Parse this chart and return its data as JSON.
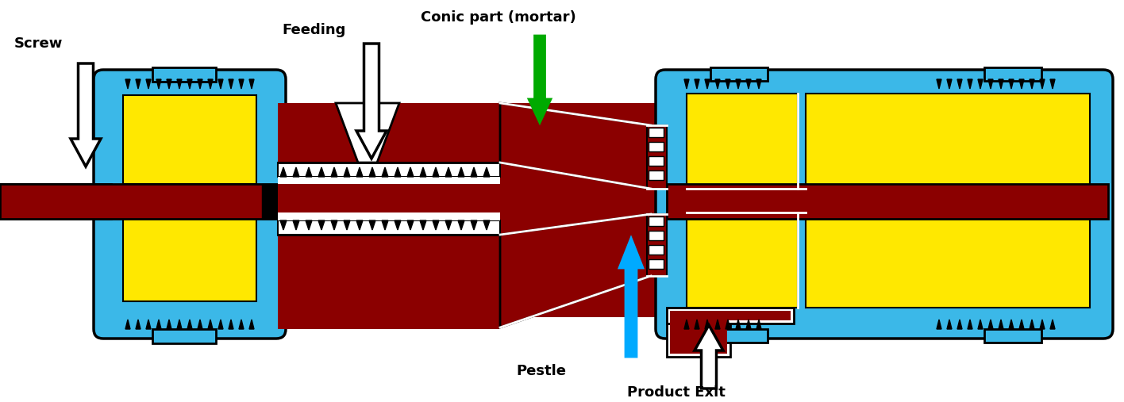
{
  "colors": {
    "blue": "#3BB8E8",
    "dark_red": "#8B0000",
    "yellow": "#FFE800",
    "white": "#FFFFFF",
    "black": "#000000",
    "green": "#00AA00",
    "cyan": "#00AAFF",
    "bg": "#FFFFFF"
  },
  "labels": {
    "screw": "Screw",
    "feeding": "Feeding",
    "conic": "Conic part (mortar)",
    "pestle": "Pestle",
    "product_exit": "Product Exit"
  },
  "figsize": [
    14.16,
    5.07
  ],
  "dpi": 100
}
